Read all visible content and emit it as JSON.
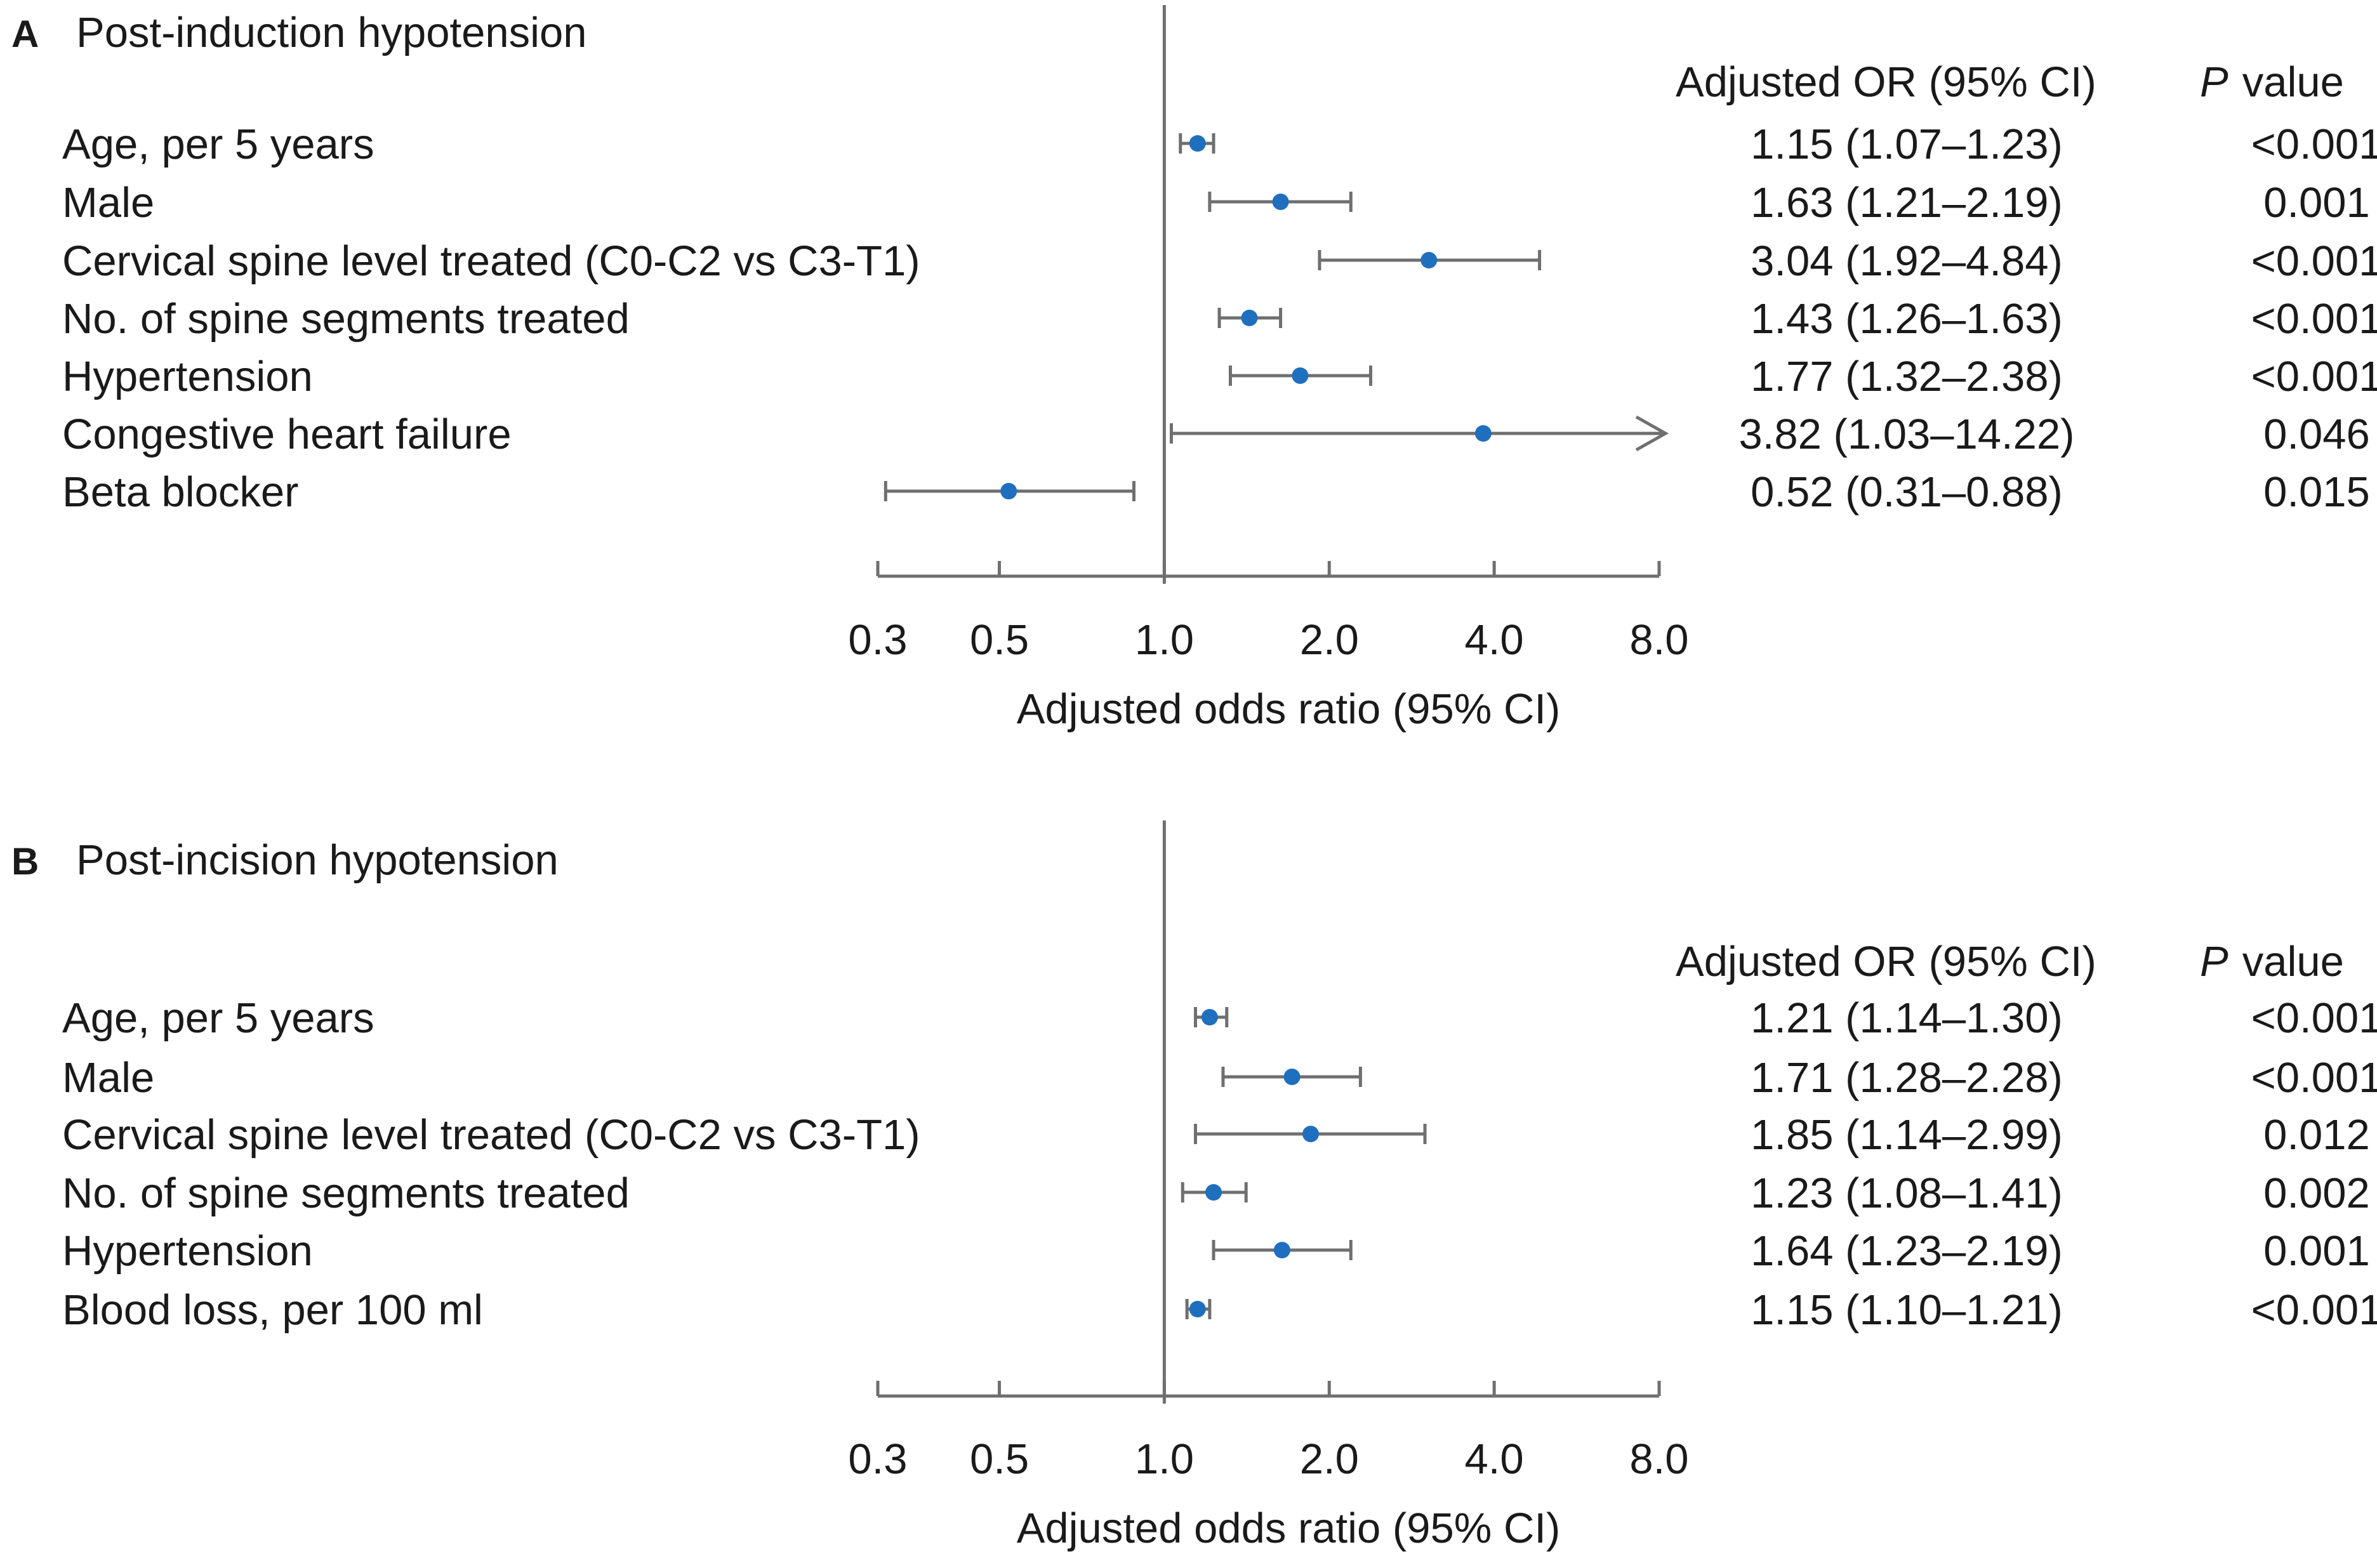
{
  "chart_data": [
    {
      "type": "forest",
      "panel": "A",
      "title": "Post-induction hypotension",
      "xscale": "log",
      "xlim": [
        0.3,
        8.0
      ],
      "xticks": [
        "0.3",
        "0.5",
        "1.0",
        "2.0",
        "4.0",
        "8.0"
      ],
      "xlabel": "Adjusted odds ratio (95% CI)",
      "reference_line": 1.0,
      "columns": {
        "or": "Adjusted OR (95% CI)",
        "p_italic": "P",
        "p_rest": "value"
      },
      "rows": [
        {
          "label": "Age, per 5 years",
          "or": 1.15,
          "lo": 1.07,
          "hi": 1.23,
          "or_text": "1.15 (1.07–1.23)",
          "p": "<0.001"
        },
        {
          "label": "Male",
          "or": 1.63,
          "lo": 1.21,
          "hi": 2.19,
          "or_text": "1.63 (1.21–2.19)",
          "p": "0.001"
        },
        {
          "label": "Cervical spine level treated (C0-C2 vs C3-T1)",
          "or": 3.04,
          "lo": 1.92,
          "hi": 4.84,
          "or_text": "3.04 (1.92–4.84)",
          "p": "<0.001"
        },
        {
          "label": "No. of spine segments treated",
          "or": 1.43,
          "lo": 1.26,
          "hi": 1.63,
          "or_text": "1.43 (1.26–1.63)",
          "p": "<0.001"
        },
        {
          "label": "Hypertension",
          "or": 1.77,
          "lo": 1.32,
          "hi": 2.38,
          "or_text": "1.77 (1.32–2.38)",
          "p": "<0.001"
        },
        {
          "label": "Congestive heart failure",
          "or": 3.82,
          "lo": 1.03,
          "hi": 14.22,
          "or_text": "3.82 (1.03–14.22)",
          "p": "0.046"
        },
        {
          "label": "Beta blocker",
          "or": 0.52,
          "lo": 0.31,
          "hi": 0.88,
          "or_text": "0.52 (0.31–0.88)",
          "p": "0.015"
        }
      ]
    },
    {
      "type": "forest",
      "panel": "B",
      "title": "Post-incision hypotension",
      "xscale": "log",
      "xlim": [
        0.3,
        8.0
      ],
      "xticks": [
        "0.3",
        "0.5",
        "1.0",
        "2.0",
        "4.0",
        "8.0"
      ],
      "xlabel": "Adjusted odds ratio (95% CI)",
      "reference_line": 1.0,
      "columns": {
        "or": "Adjusted OR (95% CI)",
        "p_italic": "P",
        "p_rest": "value"
      },
      "rows": [
        {
          "label": "Age, per 5 years",
          "or": 1.21,
          "lo": 1.14,
          "hi": 1.3,
          "or_text": "1.21 (1.14–1.30)",
          "p": "<0.001"
        },
        {
          "label": "Male",
          "or": 1.71,
          "lo": 1.28,
          "hi": 2.28,
          "or_text": "1.71 (1.28–2.28)",
          "p": "<0.001"
        },
        {
          "label": "Cervical spine level treated (C0-C2 vs C3-T1)",
          "or": 1.85,
          "lo": 1.14,
          "hi": 2.99,
          "or_text": "1.85 (1.14–2.99)",
          "p": "0.012"
        },
        {
          "label": "No. of spine segments treated",
          "or": 1.23,
          "lo": 1.08,
          "hi": 1.41,
          "or_text": "1.23 (1.08–1.41)",
          "p": "0.002"
        },
        {
          "label": "Hypertension",
          "or": 1.64,
          "lo": 1.23,
          "hi": 2.19,
          "or_text": "1.64 (1.23–2.19)",
          "p": "0.001"
        },
        {
          "label": "Blood loss, per 100 ml",
          "or": 1.15,
          "lo": 1.1,
          "hi": 1.21,
          "or_text": "1.15 (1.10–1.21)",
          "p": "<0.001"
        }
      ]
    }
  ],
  "colors": {
    "point": "#1f6fbf",
    "line": "#6f6f6f",
    "text": "#1a1a1a"
  }
}
